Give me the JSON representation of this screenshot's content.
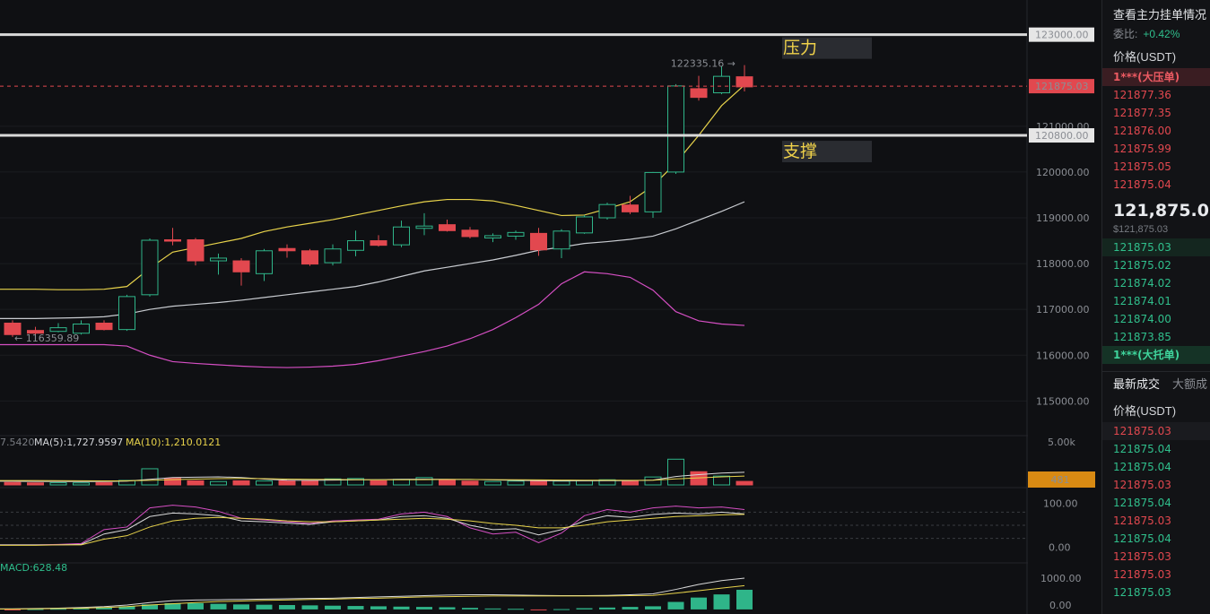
{
  "chart_data": {
    "type": "candlestick",
    "ylim": [
      114400,
      123600
    ],
    "y_ticks": [
      "123000.00",
      "121000.00",
      "120000.00",
      "119000.00",
      "118000.00",
      "117000.00",
      "116000.00",
      "115000.00"
    ],
    "candles": [
      {
        "o": 116700,
        "h": 116760,
        "c": 116450,
        "l": 116400
      },
      {
        "o": 116540,
        "h": 116620,
        "c": 116480,
        "l": 116430
      },
      {
        "o": 116520,
        "h": 116700,
        "c": 116600,
        "l": 116500
      },
      {
        "o": 116480,
        "h": 116760,
        "c": 116680,
        "l": 116450
      },
      {
        "o": 116700,
        "h": 116760,
        "c": 116560,
        "l": 116540
      },
      {
        "o": 116560,
        "h": 117320,
        "c": 117280,
        "l": 116530
      },
      {
        "o": 117320,
        "h": 118550,
        "c": 118510,
        "l": 117280
      },
      {
        "o": 118520,
        "h": 118780,
        "c": 118500,
        "l": 118400
      },
      {
        "o": 118520,
        "h": 118560,
        "c": 118060,
        "l": 117960
      },
      {
        "o": 118060,
        "h": 118220,
        "c": 118120,
        "l": 117760
      },
      {
        "o": 118060,
        "h": 118120,
        "c": 117820,
        "l": 117520
      },
      {
        "o": 117780,
        "h": 118320,
        "c": 118280,
        "l": 117620
      },
      {
        "o": 118330,
        "h": 118420,
        "c": 118280,
        "l": 118130
      },
      {
        "o": 118280,
        "h": 118320,
        "c": 117990,
        "l": 117950
      },
      {
        "o": 118020,
        "h": 118420,
        "c": 118320,
        "l": 117960
      },
      {
        "o": 118290,
        "h": 118720,
        "c": 118500,
        "l": 118160
      },
      {
        "o": 118500,
        "h": 118620,
        "c": 118400,
        "l": 118370
      },
      {
        "o": 118410,
        "h": 118940,
        "c": 118800,
        "l": 118360
      },
      {
        "o": 118770,
        "h": 119100,
        "c": 118820,
        "l": 118620
      },
      {
        "o": 118850,
        "h": 118960,
        "c": 118720,
        "l": 118700
      },
      {
        "o": 118730,
        "h": 118800,
        "c": 118590,
        "l": 118550
      },
      {
        "o": 118560,
        "h": 118660,
        "c": 118610,
        "l": 118470
      },
      {
        "o": 118600,
        "h": 118720,
        "c": 118680,
        "l": 118520
      },
      {
        "o": 118660,
        "h": 118780,
        "c": 118300,
        "l": 118170
      },
      {
        "o": 118320,
        "h": 118750,
        "c": 118710,
        "l": 118120
      },
      {
        "o": 118670,
        "h": 119060,
        "c": 119020,
        "l": 118650
      },
      {
        "o": 119000,
        "h": 119330,
        "c": 119290,
        "l": 118960
      },
      {
        "o": 119280,
        "h": 119480,
        "c": 119130,
        "l": 119080
      },
      {
        "o": 119130,
        "h": 120000,
        "c": 119990,
        "l": 119000
      },
      {
        "o": 120000,
        "h": 121920,
        "c": 121880,
        "l": 119960
      },
      {
        "o": 121820,
        "h": 122100,
        "c": 121630,
        "l": 121560
      },
      {
        "o": 121730,
        "h": 122310,
        "c": 122090,
        "l": 121700
      },
      {
        "o": 122080,
        "h": 122335,
        "c": 121860,
        "l": 121760
      }
    ],
    "bb_upper": [
      117440,
      117440,
      117430,
      117430,
      117440,
      117500,
      117900,
      118250,
      118350,
      118450,
      118550,
      118700,
      118800,
      118880,
      118960,
      119060,
      119160,
      119260,
      119350,
      119400,
      119400,
      119370,
      119270,
      119160,
      119050,
      119060,
      119200,
      119350,
      119700,
      120200,
      120800,
      121450,
      121900
    ],
    "bb_mid": [
      116800,
      116800,
      116810,
      116820,
      116840,
      116900,
      117000,
      117070,
      117110,
      117150,
      117200,
      117260,
      117320,
      117380,
      117440,
      117500,
      117600,
      117720,
      117840,
      117920,
      118000,
      118080,
      118180,
      118290,
      118360,
      118440,
      118480,
      118530,
      118600,
      118760,
      118950,
      119140,
      119350
    ],
    "bb_lower": [
      116230,
      116230,
      116230,
      116230,
      116230,
      116200,
      116000,
      115860,
      115820,
      115790,
      115760,
      115740,
      115730,
      115740,
      115760,
      115800,
      115880,
      115980,
      116080,
      116200,
      116360,
      116560,
      116820,
      117110,
      117560,
      117820,
      117780,
      117700,
      117420,
      116950,
      116750,
      116680,
      116650
    ],
    "resistance_level": 123000,
    "support_level": 120800,
    "current_price": 121875.03,
    "current_price_label": "121875.03",
    "resistance_label": "123000.00",
    "support_label": "120800.00",
    "high_annotation": "122335.16 →",
    "low_annotation": "← 116359.89",
    "resistance_text": "压力",
    "support_text": "支撑",
    "volume": {
      "label_prefix": "7.5420",
      "ma5_label": "MA(5):1,727.9597",
      "ma10_label": "MA(10):1,210.0121",
      "tick_top": "5.00k",
      "current_label": "481",
      "max": 5000,
      "values": [
        340,
        280,
        300,
        280,
        320,
        610,
        2200,
        900,
        560,
        460,
        560,
        540,
        560,
        600,
        820,
        870,
        560,
        760,
        1000,
        680,
        520,
        460,
        520,
        640,
        520,
        580,
        700,
        540,
        1080,
        3500,
        1800,
        1200,
        481
      ],
      "ma5": [
        500,
        480,
        470,
        460,
        470,
        520,
        760,
        1000,
        1050,
        1100,
        1010,
        800,
        640,
        620,
        660,
        700,
        720,
        760,
        780,
        760,
        740,
        680,
        620,
        580,
        560,
        560,
        580,
        580,
        660,
        1150,
        1400,
        1620,
        1728
      ],
      "ma10": [
        600,
        590,
        580,
        560,
        550,
        560,
        620,
        720,
        800,
        860,
        880,
        860,
        800,
        760,
        740,
        720,
        700,
        700,
        720,
        740,
        740,
        720,
        700,
        680,
        660,
        640,
        640,
        620,
        640,
        820,
        960,
        1100,
        1210
      ]
    },
    "oscillator": {
      "ticks": [
        "100.00",
        "0.00"
      ],
      "range": [
        -20,
        120
      ],
      "dashed": [
        80,
        50,
        20
      ],
      "k": [
        5,
        5,
        5,
        6,
        30,
        40,
        70,
        78,
        76,
        72,
        60,
        58,
        55,
        52,
        58,
        60,
        62,
        70,
        72,
        66,
        50,
        40,
        42,
        28,
        40,
        60,
        72,
        68,
        75,
        78,
        76,
        80,
        76
      ],
      "d": [
        4,
        4,
        5,
        5,
        18,
        26,
        46,
        60,
        66,
        68,
        66,
        64,
        60,
        58,
        58,
        60,
        62,
        64,
        66,
        64,
        60,
        54,
        50,
        44,
        44,
        50,
        58,
        62,
        66,
        70,
        72,
        74,
        75
      ],
      "j": [
        5,
        5,
        6,
        8,
        40,
        46,
        90,
        96,
        92,
        82,
        66,
        62,
        58,
        54,
        60,
        62,
        64,
        76,
        80,
        70,
        44,
        30,
        34,
        10,
        32,
        72,
        86,
        80,
        90,
        94,
        90,
        92,
        86
      ]
    },
    "macd": {
      "label": "MACD:628.48",
      "ticks": [
        "1000.00",
        "0.00"
      ],
      "range": [
        -60,
        1200
      ],
      "dif": [
        20,
        30,
        40,
        60,
        90,
        140,
        220,
        280,
        300,
        310,
        320,
        330,
        340,
        350,
        360,
        380,
        400,
        420,
        440,
        460,
        470,
        470,
        460,
        450,
        440,
        440,
        450,
        470,
        500,
        640,
        800,
        920,
        1000
      ],
      "dea": [
        10,
        20,
        30,
        40,
        60,
        90,
        140,
        180,
        220,
        250,
        270,
        290,
        300,
        320,
        330,
        350,
        360,
        380,
        400,
        410,
        420,
        430,
        430,
        430,
        430,
        430,
        430,
        440,
        450,
        520,
        600,
        680,
        760
      ],
      "hist": [
        -10,
        10,
        20,
        30,
        60,
        100,
        160,
        200,
        200,
        180,
        160,
        150,
        140,
        130,
        120,
        110,
        100,
        90,
        80,
        70,
        50,
        30,
        20,
        -10,
        10,
        40,
        60,
        80,
        100,
        240,
        380,
        480,
        628
      ]
    }
  },
  "panel": {
    "title": "查看主力挂单情况",
    "ratio_label": "委比:",
    "ratio_value": "+0.42%",
    "price_col": "价格(USDT)",
    "big_ask": "1***(大压单)",
    "asks": [
      "121877.36",
      "121877.35",
      "121876.00",
      "121875.99",
      "121875.05",
      "121875.04"
    ],
    "last_price": "121,875.03",
    "last_price_sub": "$121,875.03",
    "bids": [
      "121875.03",
      "121875.02",
      "121874.02",
      "121874.01",
      "121874.00",
      "121873.85"
    ],
    "big_bid": "1***(大托单)",
    "tab_latest": "最新成交",
    "tab_large": "大额成",
    "trade_price_col": "价格(USDT)",
    "trades": [
      {
        "p": "121875.03",
        "side": "red"
      },
      {
        "p": "121875.04",
        "side": "grn"
      },
      {
        "p": "121875.04",
        "side": "grn"
      },
      {
        "p": "121875.03",
        "side": "red"
      },
      {
        "p": "121875.04",
        "side": "grn"
      },
      {
        "p": "121875.03",
        "side": "red"
      },
      {
        "p": "121875.04",
        "side": "grn"
      },
      {
        "p": "121875.03",
        "side": "red"
      },
      {
        "p": "121875.03",
        "side": "red"
      },
      {
        "p": "121875.03",
        "side": "grn"
      }
    ]
  },
  "colors": {
    "up": "#2fb589",
    "down": "#e2484f",
    "bb_upper": "#e8d34b",
    "bb_mid": "#c9ccd1",
    "bb_lower": "#d64fc4",
    "level_line": "#d9d9d9",
    "current_line": "#e2484f",
    "vol_label_bg": "#d88a13"
  }
}
